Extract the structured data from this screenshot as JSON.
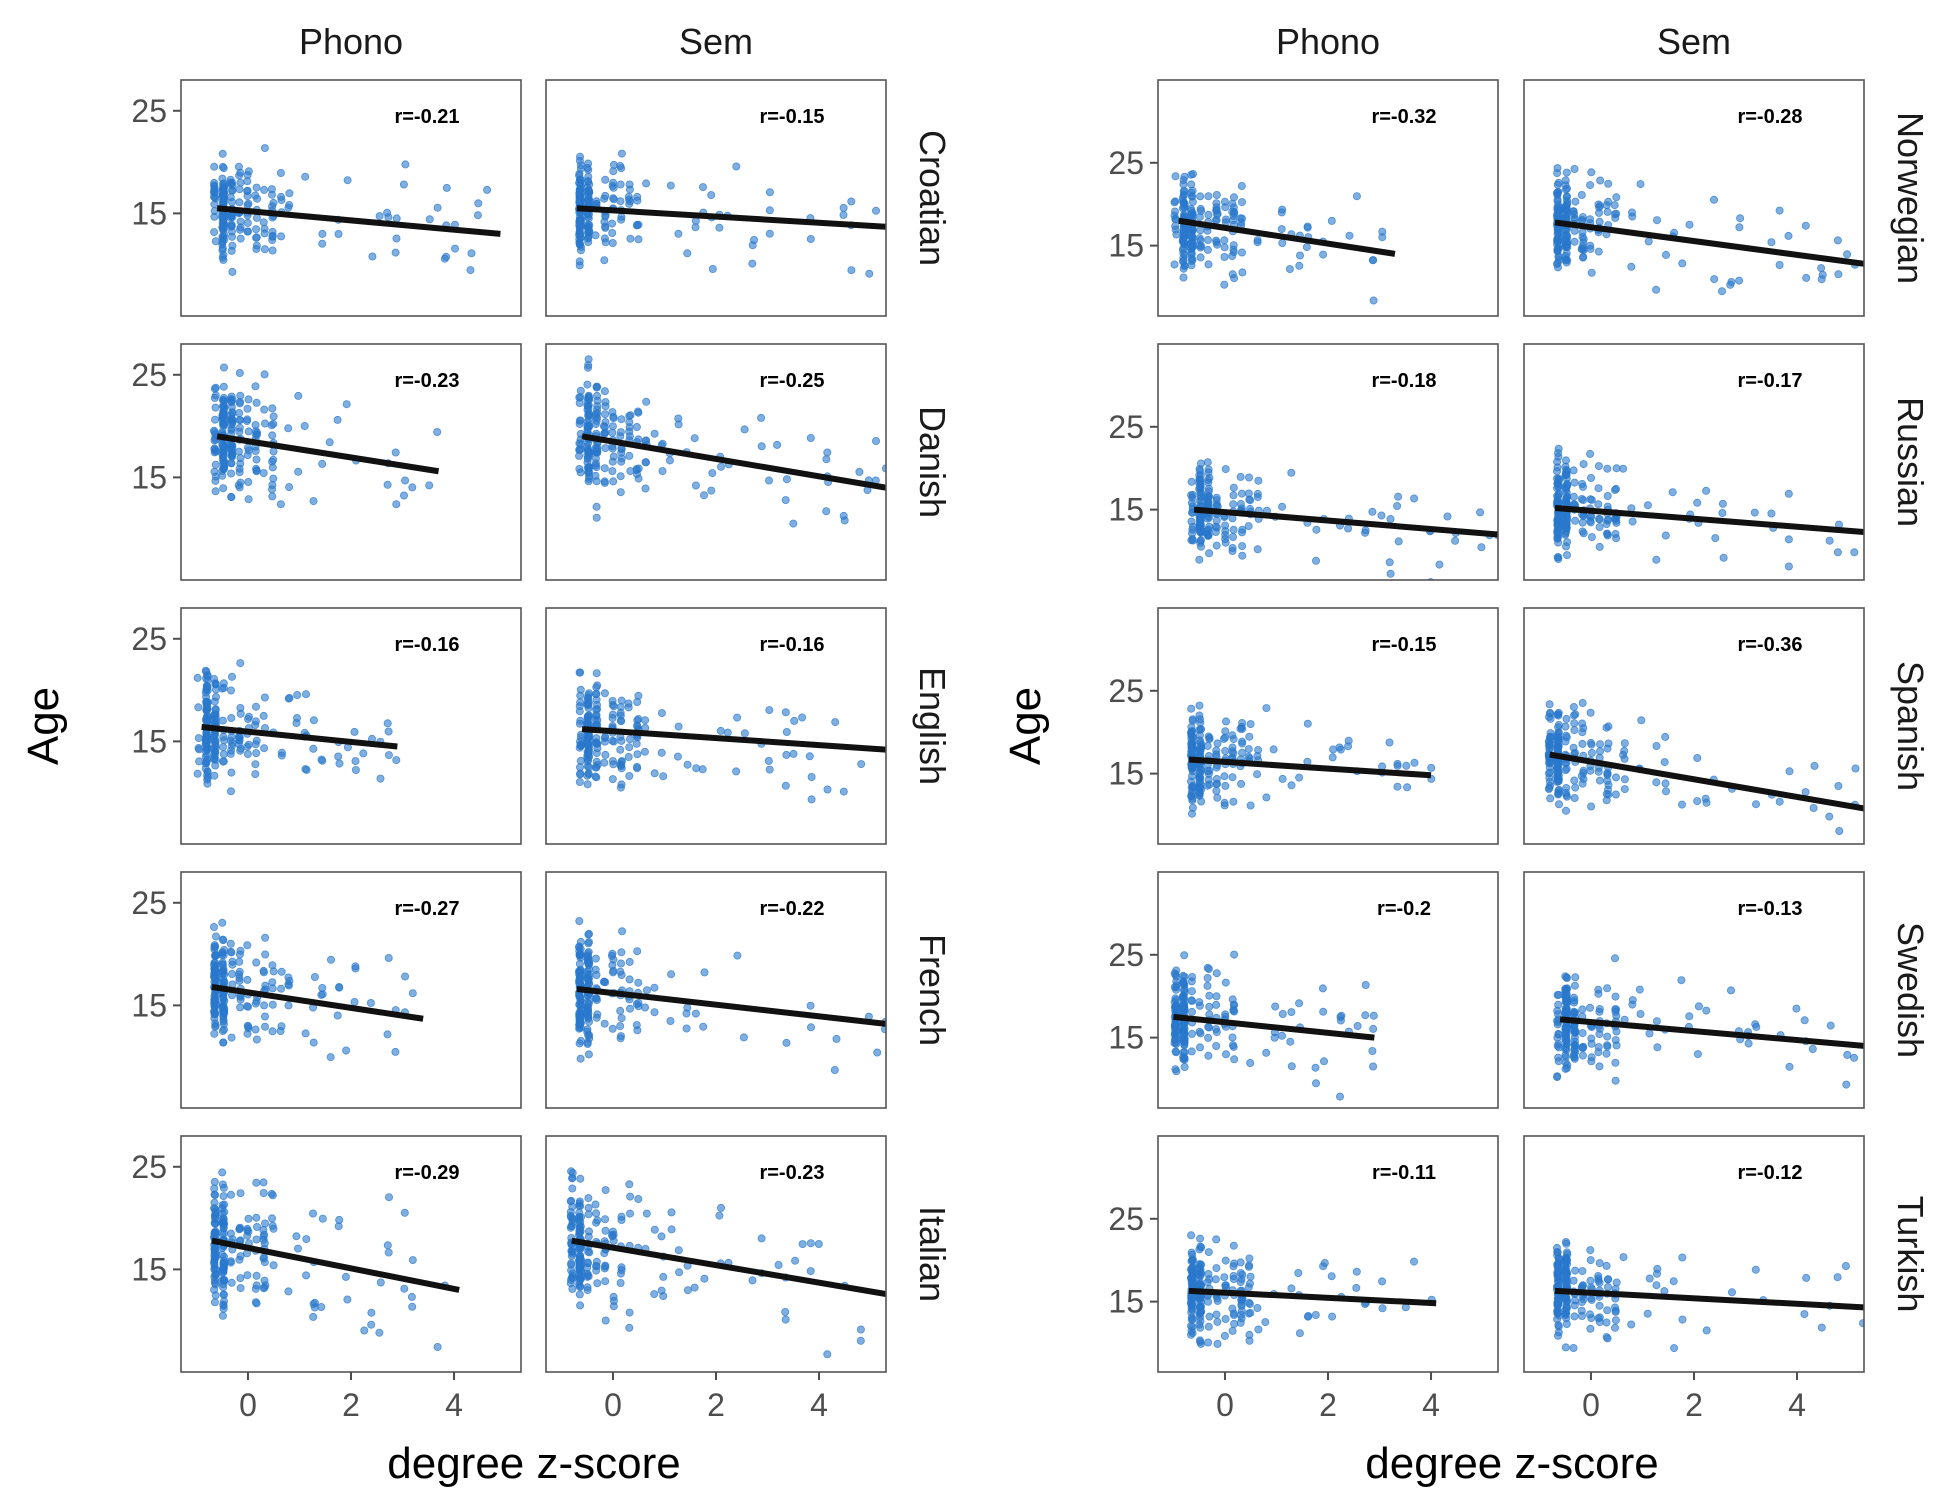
{
  "colors": {
    "point": "#2a78cc",
    "fit_line": "#111111",
    "panel_border": "#555555",
    "axis_text": "#4d4d4d",
    "strip_text": "#1a1a1a",
    "title_text": "#000000"
  },
  "chart_data": [
    {
      "type": "scatter",
      "xlabel": "degree z-score",
      "ylabel": "Age",
      "xlim": [
        -1.3,
        5.3
      ],
      "ylim": [
        5,
        28
      ],
      "xticks": [
        "0",
        "2",
        "4"
      ],
      "yticks": [
        "15",
        "25"
      ],
      "columns": [
        "Phono",
        "Sem"
      ],
      "rows": [
        {
          "language": "Croatian",
          "panels": [
            {
              "label": "r=-0.21",
              "x_range": [
                -0.6,
                4.9
              ],
              "line": [
                15.5,
                13.0
              ],
              "y_center": 15.5,
              "y_spread": 2.6
            },
            {
              "label": "r=-0.15",
              "x_range": [
                -0.7,
                5.3
              ],
              "line": [
                15.5,
                13.7
              ],
              "y_center": 15.5,
              "y_spread": 2.6
            }
          ]
        },
        {
          "language": "Danish",
          "panels": [
            {
              "label": "r=-0.23",
              "x_range": [
                -0.6,
                3.7
              ],
              "line": [
                19.0,
                15.6
              ],
              "y_center": 19.0,
              "y_spread": 3.2
            },
            {
              "label": "r=-0.25",
              "x_range": [
                -0.6,
                5.3
              ],
              "line": [
                19.0,
                14.0
              ],
              "y_center": 19.0,
              "y_spread": 3.2
            }
          ]
        },
        {
          "language": "English",
          "panels": [
            {
              "label": "r=-0.16",
              "x_range": [
                -0.9,
                2.9
              ],
              "line": [
                16.4,
                14.5
              ],
              "y_center": 16.2,
              "y_spread": 2.8
            },
            {
              "label": "r=-0.16",
              "x_range": [
                -0.6,
                5.3
              ],
              "line": [
                16.2,
                14.2
              ],
              "y_center": 16.0,
              "y_spread": 2.8
            }
          ]
        },
        {
          "language": "French",
          "panels": [
            {
              "label": "r=-0.27",
              "x_range": [
                -0.7,
                3.4
              ],
              "line": [
                16.8,
                13.7
              ],
              "y_center": 16.5,
              "y_spread": 2.8
            },
            {
              "label": "r=-0.22",
              "x_range": [
                -0.7,
                5.3
              ],
              "line": [
                16.6,
                13.2
              ],
              "y_center": 16.3,
              "y_spread": 2.8
            }
          ]
        },
        {
          "language": "Italian",
          "panels": [
            {
              "label": "r=-0.29",
              "x_range": [
                -0.7,
                4.1
              ],
              "line": [
                17.8,
                13.0
              ],
              "y_center": 17.5,
              "y_spread": 3.6
            },
            {
              "label": "r=-0.23",
              "x_range": [
                -0.8,
                5.3
              ],
              "line": [
                17.8,
                12.6
              ],
              "y_center": 17.5,
              "y_spread": 3.6
            }
          ]
        }
      ]
    },
    {
      "type": "scatter",
      "xlabel": "degree z-score",
      "ylabel": "Age",
      "xlim": [
        -1.3,
        5.3
      ],
      "ylim": [
        6.5,
        35
      ],
      "xticks": [
        "0",
        "2",
        "4"
      ],
      "yticks": [
        "15",
        "25"
      ],
      "columns": [
        "Phono",
        "Sem"
      ],
      "rows": [
        {
          "language": "Norwegian",
          "panels": [
            {
              "label": "r=-0.32",
              "x_range": [
                -0.9,
                3.3
              ],
              "line": [
                18.0,
                14.0
              ],
              "y_center": 17.8,
              "y_spread": 3.0
            },
            {
              "label": "r=-0.28",
              "x_range": [
                -0.7,
                5.3
              ],
              "line": [
                17.8,
                12.8
              ],
              "y_center": 17.6,
              "y_spread": 3.0
            }
          ]
        },
        {
          "language": "Russian",
          "panels": [
            {
              "label": "r=-0.18",
              "x_range": [
                -0.6,
                5.3
              ],
              "line": [
                15.0,
                12.0
              ],
              "y_center": 14.5,
              "y_spread": 3.0
            },
            {
              "label": "r=-0.17",
              "x_range": [
                -0.7,
                5.3
              ],
              "line": [
                15.2,
                12.3
              ],
              "y_center": 14.8,
              "y_spread": 3.0
            }
          ]
        },
        {
          "language": "Spanish",
          "panels": [
            {
              "label": "r=-0.15",
              "x_range": [
                -0.7,
                4.0
              ],
              "line": [
                16.7,
                14.8
              ],
              "y_center": 16.5,
              "y_spread": 3.0
            },
            {
              "label": "r=-0.36",
              "x_range": [
                -0.8,
                5.3
              ],
              "line": [
                17.3,
                10.8
              ],
              "y_center": 17.0,
              "y_spread": 3.2
            }
          ]
        },
        {
          "language": "Swedish",
          "panels": [
            {
              "label": "r=-0.2",
              "x_range": [
                -1.0,
                2.9
              ],
              "line": [
                17.5,
                15.0
              ],
              "y_center": 17.5,
              "y_spread": 3.4
            },
            {
              "label": "r=-0.13",
              "x_range": [
                -0.6,
                5.3
              ],
              "line": [
                17.2,
                14.0
              ],
              "y_center": 17.0,
              "y_spread": 3.4
            }
          ]
        },
        {
          "language": "Turkish",
          "panels": [
            {
              "label": "r=-0.11",
              "x_range": [
                -0.7,
                4.1
              ],
              "line": [
                16.3,
                14.8
              ],
              "y_center": 16.0,
              "y_spread": 3.0
            },
            {
              "label": "r=-0.12",
              "x_range": [
                -0.7,
                5.3
              ],
              "line": [
                16.3,
                14.3
              ],
              "y_center": 16.0,
              "y_spread": 3.0
            }
          ]
        }
      ]
    }
  ]
}
